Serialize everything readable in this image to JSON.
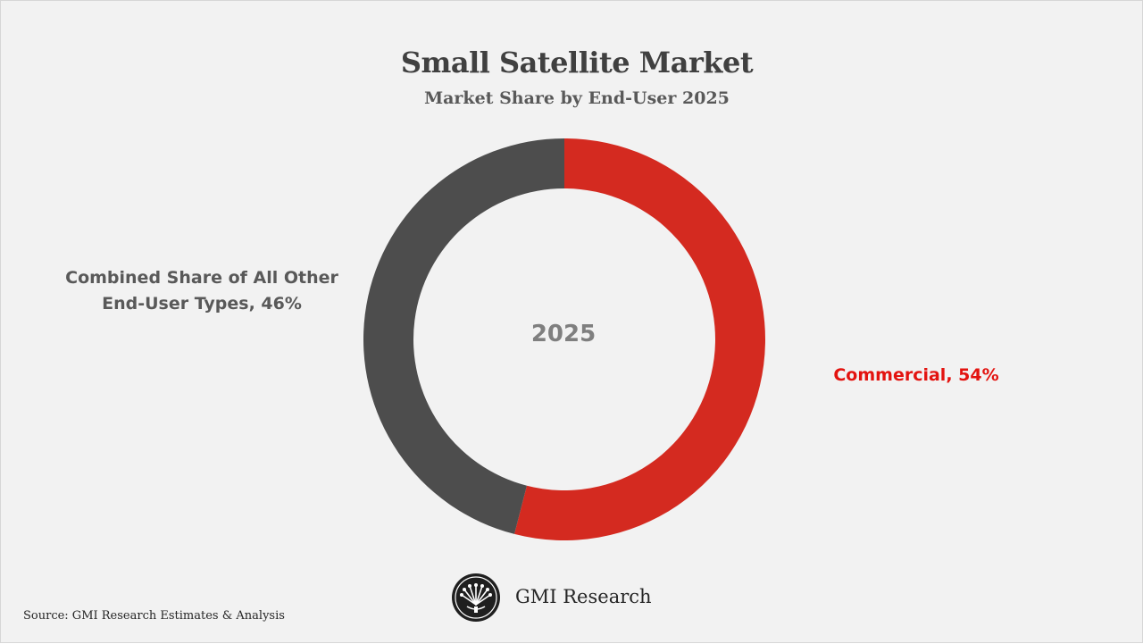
{
  "header": {
    "title": "Small Satellite Market",
    "subtitle": "Market Share by End-User 2025"
  },
  "chart_data": {
    "type": "pie",
    "title": "Small Satellite Market",
    "subtitle": "Market Share by End-User 2025",
    "center_label": "2025",
    "slices": [
      {
        "label": "Commercial",
        "value": 54,
        "color": "#d42a20",
        "display": "Commercial, 54%"
      },
      {
        "label": "Combined Share of All Other End-User Types",
        "value": 46,
        "color": "#4d4d4d",
        "display_line1": "Combined Share of All Other",
        "display_line2": "End-User Types, 46%"
      }
    ]
  },
  "colors": {
    "background": "#f2f2f2",
    "commercial": "#d42a20",
    "other": "#4d4d4d",
    "commercial_label": "#e3130f"
  },
  "footer": {
    "source": "Source: GMI Research Estimates & Analysis",
    "brand": "GMI Research",
    "logo_icon": "gmi-research-logo-icon"
  }
}
